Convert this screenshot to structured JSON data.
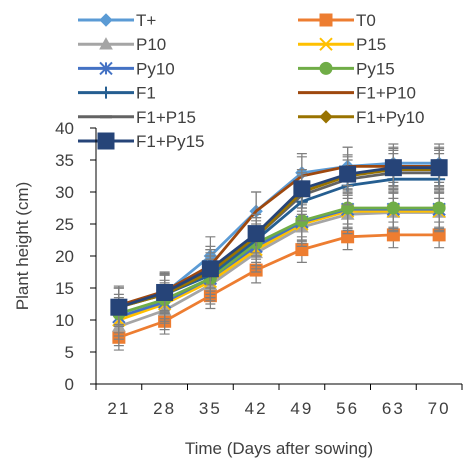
{
  "chart_data": {
    "type": "line",
    "title": "",
    "xlabel": "Time (Days after sowing)",
    "ylabel": "Plant height (cm)",
    "x": [
      "21",
      "28",
      "35",
      "42",
      "49",
      "56",
      "63",
      "70"
    ],
    "ylim": [
      0,
      40
    ],
    "yticks": [
      "0",
      "5",
      "10",
      "15",
      "20",
      "25",
      "30",
      "35",
      "40"
    ],
    "grid": false,
    "legend_position": "top",
    "error_bars": true,
    "series": [
      {
        "name": "T+",
        "color": "#5B9BD5",
        "marker": "diamond",
        "values": [
          12.3,
          14.2,
          20.0,
          27.0,
          33.0,
          34.0,
          34.5,
          34.5
        ],
        "errors": [
          3,
          3,
          3,
          3,
          3,
          3,
          3,
          3
        ]
      },
      {
        "name": "T0",
        "color": "#ED7D31",
        "marker": "square",
        "values": [
          7.3,
          9.8,
          13.8,
          17.8,
          21.0,
          23.0,
          23.3,
          23.3
        ],
        "errors": [
          2,
          2,
          2,
          2,
          2,
          2,
          2,
          2
        ]
      },
      {
        "name": "P10",
        "color": "#A5A5A5",
        "marker": "triangle",
        "values": [
          9.0,
          11.5,
          15.5,
          20.5,
          24.5,
          26.5,
          26.8,
          26.8
        ],
        "errors": [
          3,
          3,
          3,
          3,
          3,
          3,
          3,
          3
        ]
      },
      {
        "name": "P15",
        "color": "#FFC000",
        "marker": "x",
        "values": [
          10.0,
          12.5,
          16.0,
          21.0,
          25.0,
          27.0,
          27.0,
          27.0
        ],
        "errors": [
          3,
          3,
          3,
          3,
          3,
          3,
          3,
          3
        ]
      },
      {
        "name": "Py10",
        "color": "#4472C4",
        "marker": "asterisk",
        "values": [
          10.5,
          12.8,
          16.5,
          21.5,
          25.3,
          27.3,
          27.3,
          27.3
        ],
        "errors": [
          3,
          3,
          3,
          3,
          3,
          3,
          3,
          3
        ]
      },
      {
        "name": "Py15",
        "color": "#70AD47",
        "marker": "circle",
        "values": [
          11.0,
          13.2,
          16.5,
          22.0,
          25.5,
          27.5,
          27.5,
          27.5
        ],
        "errors": [
          3,
          3,
          3,
          3,
          3,
          3,
          3,
          3
        ]
      },
      {
        "name": "F1",
        "color": "#255E91",
        "marker": "plus",
        "values": [
          12.0,
          14.0,
          17.0,
          22.5,
          28.5,
          31.0,
          32.0,
          32.0
        ],
        "errors": [
          3,
          3,
          3,
          3,
          3,
          3,
          3,
          3
        ]
      },
      {
        "name": "F1+P10",
        "color": "#9E480E",
        "marker": "none",
        "values": [
          12.3,
          14.5,
          18.5,
          27.0,
          32.5,
          34.0,
          34.0,
          34.0
        ],
        "errors": [
          3,
          3,
          3,
          3,
          3,
          3,
          3,
          3
        ]
      },
      {
        "name": "F1+P15",
        "color": "#636363",
        "marker": "dash",
        "values": [
          12.0,
          14.2,
          18.0,
          23.0,
          29.5,
          32.0,
          33.0,
          33.0
        ],
        "errors": [
          3,
          3,
          3,
          3,
          3,
          3,
          3,
          3
        ]
      },
      {
        "name": "F1+Py10",
        "color": "#997300",
        "marker": "diamond",
        "values": [
          12.0,
          14.0,
          17.5,
          23.0,
          30.0,
          32.5,
          33.5,
          33.5
        ],
        "errors": [
          3,
          3,
          3,
          3,
          3,
          3,
          3,
          3
        ]
      },
      {
        "name": "F1+Py15",
        "color": "#264478",
        "marker": "square",
        "values": [
          12.0,
          14.3,
          18.0,
          23.5,
          30.5,
          32.8,
          33.8,
          33.8
        ],
        "errors": [
          3,
          3,
          3,
          3,
          3,
          3,
          3,
          3
        ]
      }
    ]
  }
}
